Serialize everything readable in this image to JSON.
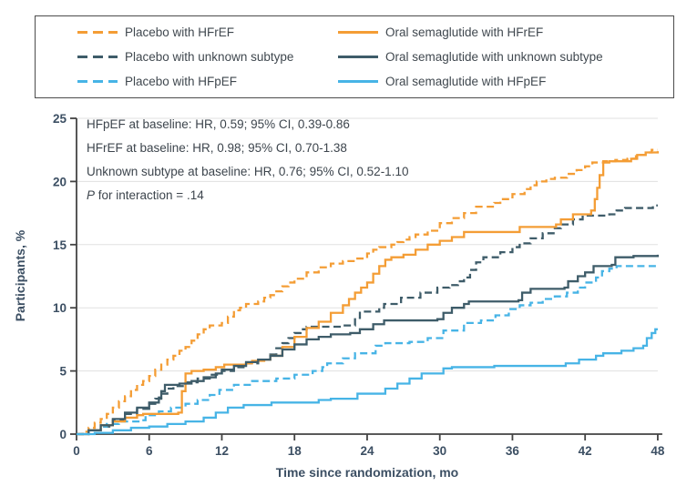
{
  "figure": {
    "background": "#ffffff"
  },
  "legend": {
    "border_color": "#4c4c4c"
  },
  "annotation": {
    "lines": [
      "HFpEF at baseline: HR, 0.59; 95% CI, 0.39-0.86",
      "HFrEF at baseline: HR, 0.98; 95% CI, 0.70-1.38",
      "Unknown subtype at baseline: HR, 0.76; 95% CI, 0.52-1.10"
    ],
    "p_italic": "P",
    "p_rest": " for interaction = .14"
  },
  "chart_data": {
    "type": "line",
    "subtype": "kaplan-meier-step",
    "title": "",
    "xlabel": "Time since randomization, mo",
    "ylabel": "Participants, %",
    "xlim": [
      0,
      48
    ],
    "ylim": [
      0,
      25
    ],
    "x_ticks": [
      0,
      6,
      12,
      18,
      24,
      30,
      36,
      42,
      48
    ],
    "y_ticks": [
      0,
      5,
      10,
      15,
      20,
      25
    ],
    "grid": true,
    "grid_color": "#e0e0e0",
    "axis_color": "#434343",
    "legend_position": "top",
    "series": [
      {
        "name": "Placebo with HFrEF",
        "color": "#f49d35",
        "style": "dashed",
        "points": [
          [
            0,
            0
          ],
          [
            0.5,
            0.2
          ],
          [
            1,
            0.5
          ],
          [
            1.5,
            0.9
          ],
          [
            2,
            1.2
          ],
          [
            2.5,
            1.6
          ],
          [
            3,
            2.1
          ],
          [
            3.5,
            2.6
          ],
          [
            4,
            3.0
          ],
          [
            4.5,
            3.5
          ],
          [
            5,
            3.9
          ],
          [
            5.5,
            4.2
          ],
          [
            6,
            4.6
          ],
          [
            6.5,
            5.1
          ],
          [
            7,
            5.5
          ],
          [
            7.5,
            5.9
          ],
          [
            8,
            6.2
          ],
          [
            8.5,
            6.6
          ],
          [
            9,
            6.9
          ],
          [
            9.5,
            7.4
          ],
          [
            10,
            7.9
          ],
          [
            10.5,
            8.3
          ],
          [
            11,
            8.6
          ],
          [
            12,
            8.8
          ],
          [
            12.5,
            9.3
          ],
          [
            13,
            9.8
          ],
          [
            13.5,
            10.0
          ],
          [
            14,
            10.3
          ],
          [
            15,
            10.5
          ],
          [
            15.5,
            10.8
          ],
          [
            16,
            11.0
          ],
          [
            16.5,
            11.3
          ],
          [
            17,
            11.7
          ],
          [
            17.5,
            12.0
          ],
          [
            18,
            12.3
          ],
          [
            19,
            12.8
          ],
          [
            20,
            13.2
          ],
          [
            21,
            13.5
          ],
          [
            22,
            13.7
          ],
          [
            23,
            13.9
          ],
          [
            24,
            14.3
          ],
          [
            24.5,
            14.6
          ],
          [
            25,
            14.8
          ],
          [
            26,
            15.0
          ],
          [
            26.5,
            15.2
          ],
          [
            27,
            15.4
          ],
          [
            27.5,
            15.6
          ],
          [
            28,
            15.8
          ],
          [
            29,
            16.1
          ],
          [
            30,
            16.7
          ],
          [
            31,
            17.1
          ],
          [
            32,
            17.5
          ],
          [
            33,
            18.0
          ],
          [
            34.5,
            18.3
          ],
          [
            35,
            18.6
          ],
          [
            36,
            19.0
          ],
          [
            37,
            19.4
          ],
          [
            37.5,
            19.7
          ],
          [
            38,
            20.0
          ],
          [
            38.8,
            20.2
          ],
          [
            39.5,
            20.3
          ],
          [
            40.5,
            20.6
          ],
          [
            41.3,
            20.9
          ],
          [
            42,
            21.2
          ],
          [
            42.6,
            21.5
          ],
          [
            43.5,
            21.6
          ],
          [
            44.5,
            21.7
          ],
          [
            45.5,
            21.8
          ],
          [
            46.2,
            22.1
          ],
          [
            47,
            22.3
          ],
          [
            47.5,
            22.5
          ],
          [
            48,
            22.5
          ]
        ]
      },
      {
        "name": "Oral semaglutide with HFrEF",
        "color": "#f49d35",
        "style": "solid",
        "points": [
          [
            0,
            0
          ],
          [
            1,
            0.3
          ],
          [
            2,
            0.7
          ],
          [
            3,
            1.0
          ],
          [
            4,
            1.3
          ],
          [
            5,
            1.5
          ],
          [
            5.5,
            1.6
          ],
          [
            8.4,
            1.7
          ],
          [
            8.7,
            3.4
          ],
          [
            9,
            4.8
          ],
          [
            9.5,
            5.0
          ],
          [
            10.5,
            5.1
          ],
          [
            11.5,
            5.3
          ],
          [
            12.2,
            5.5
          ],
          [
            14,
            5.6
          ],
          [
            14.5,
            5.8
          ],
          [
            15.5,
            5.9
          ],
          [
            16,
            6.2
          ],
          [
            17,
            6.9
          ],
          [
            18,
            7.7
          ],
          [
            19,
            8.4
          ],
          [
            20,
            8.9
          ],
          [
            21,
            9.6
          ],
          [
            22,
            10.2
          ],
          [
            22.5,
            10.7
          ],
          [
            23,
            11.2
          ],
          [
            23.5,
            11.6
          ],
          [
            24,
            12.0
          ],
          [
            24.5,
            12.7
          ],
          [
            25,
            13.3
          ],
          [
            25.5,
            13.8
          ],
          [
            26,
            14.0
          ],
          [
            27,
            14.2
          ],
          [
            28,
            14.6
          ],
          [
            29,
            15.0
          ],
          [
            30,
            15.3
          ],
          [
            31,
            15.6
          ],
          [
            32,
            16.0
          ],
          [
            36.3,
            16.0
          ],
          [
            36.6,
            16.4
          ],
          [
            39.6,
            16.6
          ],
          [
            40,
            17.0
          ],
          [
            41,
            17.4
          ],
          [
            42.5,
            17.7
          ],
          [
            42.8,
            18.6
          ],
          [
            43,
            19.5
          ],
          [
            43.2,
            20.5
          ],
          [
            43.5,
            21.5
          ],
          [
            44,
            21.6
          ],
          [
            45.8,
            21.8
          ],
          [
            46.3,
            22.1
          ],
          [
            47,
            22.3
          ],
          [
            48,
            22.4
          ]
        ]
      },
      {
        "name": "Placebo with unknown subtype",
        "color": "#3e5c69",
        "style": "dashed",
        "points": [
          [
            0,
            0
          ],
          [
            1,
            0.3
          ],
          [
            2,
            0.6
          ],
          [
            3,
            1.1
          ],
          [
            4,
            1.6
          ],
          [
            5,
            2.0
          ],
          [
            6,
            2.4
          ],
          [
            6.5,
            2.8
          ],
          [
            7,
            3.2
          ],
          [
            7.5,
            3.6
          ],
          [
            8,
            3.8
          ],
          [
            9,
            4.1
          ],
          [
            10,
            4.4
          ],
          [
            11,
            4.7
          ],
          [
            12,
            5.0
          ],
          [
            13,
            5.3
          ],
          [
            14,
            5.6
          ],
          [
            15,
            5.9
          ],
          [
            16,
            6.3
          ],
          [
            16.5,
            6.8
          ],
          [
            17,
            7.2
          ],
          [
            17.5,
            7.6
          ],
          [
            18,
            8.0
          ],
          [
            18.5,
            8.3
          ],
          [
            19,
            8.5
          ],
          [
            22,
            8.6
          ],
          [
            23,
            9.2
          ],
          [
            23.4,
            9.7
          ],
          [
            25,
            10.0
          ],
          [
            25.4,
            10.3
          ],
          [
            26.8,
            10.8
          ],
          [
            28.4,
            11.2
          ],
          [
            29.8,
            11.6
          ],
          [
            30.8,
            11.8
          ],
          [
            31.5,
            12.1
          ],
          [
            32,
            12.4
          ],
          [
            32.5,
            13.0
          ],
          [
            33,
            13.6
          ],
          [
            33.6,
            14.0
          ],
          [
            35,
            14.4
          ],
          [
            36,
            14.8
          ],
          [
            36.6,
            15.1
          ],
          [
            37.5,
            15.5
          ],
          [
            38.5,
            15.9
          ],
          [
            39.4,
            16.3
          ],
          [
            40,
            16.6
          ],
          [
            41,
            17.0
          ],
          [
            41.8,
            17.3
          ],
          [
            44,
            17.4
          ],
          [
            44.6,
            17.7
          ],
          [
            45.3,
            17.9
          ],
          [
            47.2,
            17.9
          ],
          [
            47.6,
            18.1
          ],
          [
            48,
            18.1
          ]
        ]
      },
      {
        "name": "Oral semaglutide with unknown subtype",
        "color": "#3e5c69",
        "style": "solid",
        "points": [
          [
            0,
            0
          ],
          [
            1,
            0.3
          ],
          [
            2,
            0.7
          ],
          [
            3,
            1.2
          ],
          [
            4,
            1.7
          ],
          [
            5,
            2.1
          ],
          [
            6,
            2.5
          ],
          [
            6.8,
            2.9
          ],
          [
            7,
            3.4
          ],
          [
            7.3,
            3.9
          ],
          [
            8.5,
            4.0
          ],
          [
            9.5,
            4.2
          ],
          [
            10.5,
            4.5
          ],
          [
            11.5,
            4.8
          ],
          [
            12,
            5.1
          ],
          [
            13,
            5.4
          ],
          [
            14,
            5.7
          ],
          [
            15,
            5.9
          ],
          [
            16,
            6.2
          ],
          [
            17,
            6.7
          ],
          [
            18,
            7.1
          ],
          [
            19,
            7.5
          ],
          [
            20,
            7.7
          ],
          [
            21,
            7.9
          ],
          [
            22.6,
            8.0
          ],
          [
            23.4,
            8.3
          ],
          [
            24.5,
            8.7
          ],
          [
            25.4,
            9.0
          ],
          [
            29.8,
            9.1
          ],
          [
            30.3,
            9.6
          ],
          [
            31,
            10.0
          ],
          [
            32,
            10.3
          ],
          [
            32.4,
            10.5
          ],
          [
            36.5,
            10.6
          ],
          [
            36.8,
            11.2
          ],
          [
            37.5,
            11.5
          ],
          [
            40.3,
            11.6
          ],
          [
            40.6,
            12.1
          ],
          [
            41.4,
            12.5
          ],
          [
            42,
            12.8
          ],
          [
            42.7,
            13.3
          ],
          [
            44.2,
            13.4
          ],
          [
            44.5,
            14.0
          ],
          [
            46,
            14.1
          ],
          [
            48,
            14.2
          ]
        ]
      },
      {
        "name": "Placebo with HFpEF",
        "color": "#47b4e6",
        "style": "dashed",
        "points": [
          [
            0,
            0
          ],
          [
            1,
            0.3
          ],
          [
            2,
            0.6
          ],
          [
            2.5,
            0.8
          ],
          [
            3.5,
            1.0
          ],
          [
            5.3,
            1.1
          ],
          [
            5.7,
            1.5
          ],
          [
            6.8,
            1.8
          ],
          [
            7.8,
            2.1
          ],
          [
            9,
            2.4
          ],
          [
            10,
            2.7
          ],
          [
            11,
            3.1
          ],
          [
            11.8,
            3.5
          ],
          [
            13,
            3.9
          ],
          [
            14.5,
            4.2
          ],
          [
            16.5,
            4.4
          ],
          [
            18,
            4.7
          ],
          [
            19.5,
            5.0
          ],
          [
            20.3,
            5.3
          ],
          [
            20.7,
            5.6
          ],
          [
            22,
            6.0
          ],
          [
            23,
            6.4
          ],
          [
            24.7,
            7.0
          ],
          [
            25.5,
            7.2
          ],
          [
            27.5,
            7.3
          ],
          [
            29,
            7.6
          ],
          [
            30.3,
            8.2
          ],
          [
            32,
            8.8
          ],
          [
            33.4,
            9.0
          ],
          [
            34.6,
            9.4
          ],
          [
            35.7,
            9.9
          ],
          [
            36.6,
            10.2
          ],
          [
            37.5,
            10.4
          ],
          [
            38.5,
            10.7
          ],
          [
            39.5,
            10.9
          ],
          [
            40.5,
            11.2
          ],
          [
            41.4,
            11.6
          ],
          [
            42,
            12.0
          ],
          [
            42.9,
            12.4
          ],
          [
            43.4,
            12.9
          ],
          [
            44,
            13.1
          ],
          [
            44.6,
            13.3
          ],
          [
            48,
            13.3
          ]
        ]
      },
      {
        "name": "Oral semaglutide with HFpEF",
        "color": "#47b4e6",
        "style": "solid",
        "points": [
          [
            0,
            0
          ],
          [
            1.5,
            0.1
          ],
          [
            3,
            0.3
          ],
          [
            4.5,
            0.5
          ],
          [
            6,
            0.6
          ],
          [
            7.5,
            0.8
          ],
          [
            9,
            1.0
          ],
          [
            10.5,
            1.3
          ],
          [
            11.5,
            1.7
          ],
          [
            12.5,
            2.1
          ],
          [
            13.8,
            2.3
          ],
          [
            16.1,
            2.5
          ],
          [
            20,
            2.7
          ],
          [
            21,
            2.8
          ],
          [
            23.2,
            3.2
          ],
          [
            25.5,
            3.6
          ],
          [
            26.5,
            4.0
          ],
          [
            27.5,
            4.4
          ],
          [
            28.5,
            4.8
          ],
          [
            30.3,
            5.2
          ],
          [
            31,
            5.3
          ],
          [
            34.5,
            5.4
          ],
          [
            40.4,
            5.6
          ],
          [
            41.5,
            5.9
          ],
          [
            42.9,
            6.2
          ],
          [
            43.5,
            6.4
          ],
          [
            45,
            6.6
          ],
          [
            46,
            6.8
          ],
          [
            46.8,
            7.0
          ],
          [
            47.1,
            7.6
          ],
          [
            47.5,
            8.0
          ],
          [
            47.8,
            8.3
          ],
          [
            48,
            8.3
          ]
        ]
      }
    ]
  }
}
